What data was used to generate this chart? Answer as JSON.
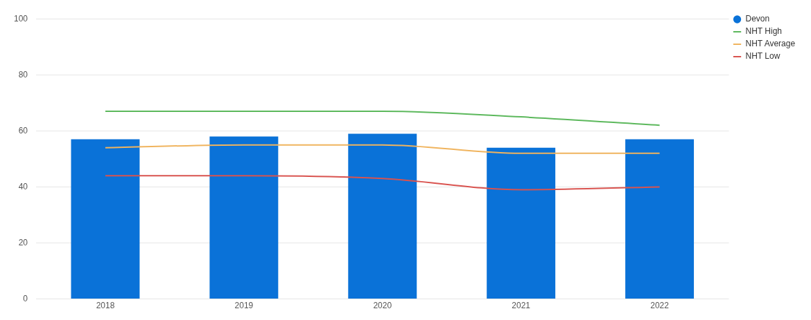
{
  "chart_data": {
    "type": "bar",
    "categories": [
      "2018",
      "2019",
      "2020",
      "2021",
      "2022"
    ],
    "series": [
      {
        "name": "Devon",
        "color": "#0a72d8",
        "values": [
          57,
          58,
          59,
          54,
          57
        ]
      },
      {
        "name": "NHT High",
        "type": "line",
        "color": "#5cb85c",
        "values": [
          67,
          67,
          67,
          65,
          62
        ]
      },
      {
        "name": "NHT Average",
        "type": "line",
        "color": "#f0b45e",
        "values": [
          54,
          55,
          55,
          52,
          52
        ]
      },
      {
        "name": "NHT Low",
        "type": "line",
        "color": "#d9534f",
        "values": [
          44,
          44,
          43,
          39,
          40
        ]
      }
    ],
    "ylim": [
      0,
      100
    ],
    "yticks": [
      0,
      20,
      40,
      60,
      80,
      100
    ],
    "grid": "y",
    "legend": "top right",
    "marker": "none"
  }
}
